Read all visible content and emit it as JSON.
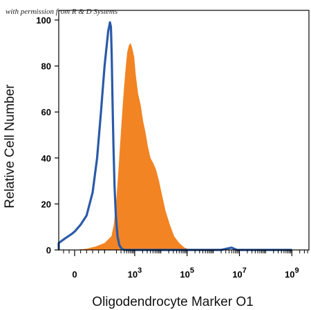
{
  "watermark": "with permission from R & D Systems",
  "chart_data": {
    "type": "area",
    "title": "",
    "xlabel": "Oligodendrocyte Marker O1",
    "ylabel": "Relative Cell Number",
    "xscale": "biexponential",
    "ylim": [
      0,
      100
    ],
    "y_ticks": [
      0,
      20,
      40,
      60,
      80,
      100
    ],
    "x_ticks": [
      {
        "label": "0",
        "value": 0
      },
      {
        "label": "10",
        "sup": "3",
        "value": 1000
      },
      {
        "label": "10",
        "sup": "5",
        "value": 100000
      },
      {
        "label": "10",
        "sup": "7",
        "value": 10000000
      },
      {
        "label": "10",
        "sup": "9",
        "value": 1000000000
      }
    ],
    "grid": false,
    "legend": "none",
    "series": [
      {
        "style": "filled",
        "color": "#f28424",
        "points": [
          [
            -80,
            0
          ],
          [
            -10,
            0
          ],
          [
            0,
            0
          ],
          [
            40,
            0.5
          ],
          [
            70,
            1.5
          ],
          [
            100,
            3
          ],
          [
            130,
            6
          ],
          [
            160,
            11
          ],
          [
            200,
            22
          ],
          [
            250,
            38
          ],
          [
            300,
            52
          ],
          [
            350,
            63
          ],
          [
            400,
            72
          ],
          [
            450,
            79
          ],
          [
            520,
            86
          ],
          [
            600,
            89
          ],
          [
            700,
            90
          ],
          [
            800,
            88
          ],
          [
            950,
            84
          ],
          [
            1100,
            76
          ],
          [
            1350,
            68
          ],
          [
            1700,
            63
          ],
          [
            2100,
            56
          ],
          [
            2600,
            51
          ],
          [
            3200,
            45
          ],
          [
            4000,
            40
          ],
          [
            5000,
            38
          ],
          [
            6500,
            35
          ],
          [
            8500,
            30
          ],
          [
            11000,
            24
          ],
          [
            15000,
            17
          ],
          [
            22000,
            11
          ],
          [
            32000,
            6
          ],
          [
            50000,
            3
          ],
          [
            80000,
            1
          ],
          [
            120000,
            0.3
          ],
          [
            200000,
            0
          ],
          [
            1000000000,
            0
          ]
        ]
      },
      {
        "style": "line",
        "color": "#2a5aa8",
        "points": [
          [
            -800,
            3
          ],
          [
            -500,
            1
          ],
          [
            -300,
            0.5
          ],
          [
            -150,
            1.5
          ],
          [
            -70,
            3
          ],
          [
            -35,
            5
          ],
          [
            -10,
            7
          ],
          [
            0,
            8
          ],
          [
            20,
            11
          ],
          [
            40,
            15
          ],
          [
            60,
            25
          ],
          [
            75,
            40
          ],
          [
            88,
            60
          ],
          [
            100,
            80
          ],
          [
            112,
            95
          ],
          [
            118,
            99
          ],
          [
            124,
            97
          ],
          [
            132,
            85
          ],
          [
            142,
            65
          ],
          [
            155,
            45
          ],
          [
            170,
            28
          ],
          [
            190,
            15
          ],
          [
            220,
            6
          ],
          [
            260,
            2
          ],
          [
            320,
            0.5
          ],
          [
            400,
            0
          ],
          [
            20000,
            0
          ],
          [
            2000000,
            0
          ],
          [
            5000000,
            1
          ],
          [
            8000000,
            0
          ],
          [
            1000000000,
            0
          ]
        ]
      }
    ]
  }
}
